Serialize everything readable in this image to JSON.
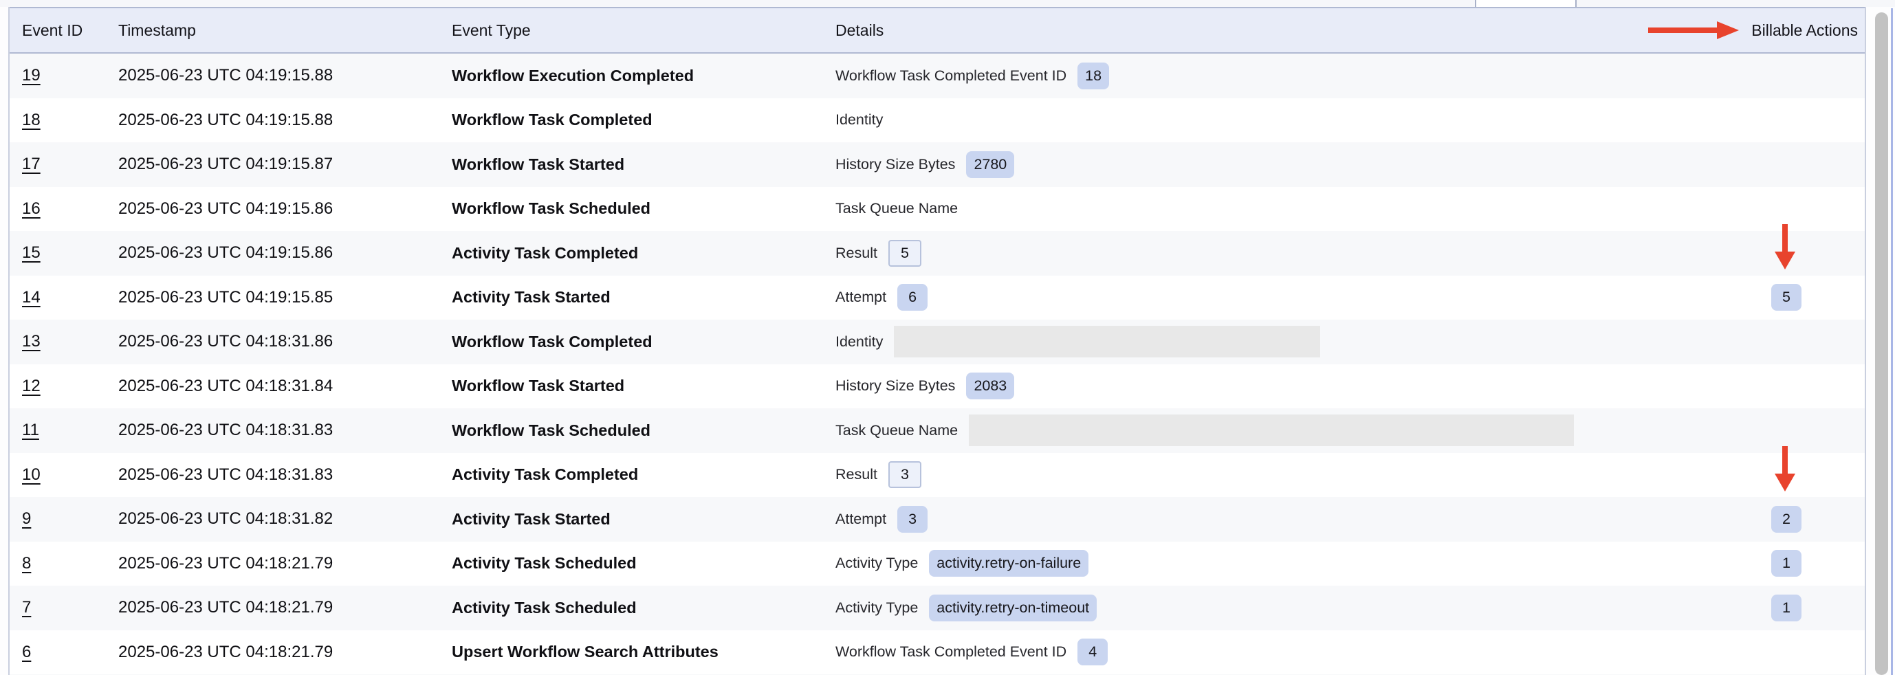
{
  "table": {
    "columns": [
      {
        "id": "event_id",
        "label": "Event ID"
      },
      {
        "id": "timestamp",
        "label": "Timestamp"
      },
      {
        "id": "event_type",
        "label": "Event Type"
      },
      {
        "id": "details",
        "label": "Details"
      },
      {
        "id": "billable_actions",
        "label": "Billable Actions"
      }
    ],
    "rows": [
      {
        "id": "19",
        "timestamp": "2025-06-23 UTC 04:19:15.88",
        "event_type": "Workflow Execution Completed",
        "detail_label": "Workflow Task Completed Event ID",
        "detail_value": "18",
        "detail_style": "badge",
        "redacted_width": 0,
        "billable": "",
        "arrow_above": false
      },
      {
        "id": "18",
        "timestamp": "2025-06-23 UTC 04:19:15.88",
        "event_type": "Workflow Task Completed",
        "detail_label": "Identity",
        "detail_value": "",
        "detail_style": "label-only",
        "redacted_width": 0,
        "billable": "",
        "arrow_above": false
      },
      {
        "id": "17",
        "timestamp": "2025-06-23 UTC 04:19:15.87",
        "event_type": "Workflow Task Started",
        "detail_label": "History Size Bytes",
        "detail_value": "2780",
        "detail_style": "badge",
        "redacted_width": 0,
        "billable": "",
        "arrow_above": false
      },
      {
        "id": "16",
        "timestamp": "2025-06-23 UTC 04:19:15.86",
        "event_type": "Workflow Task Scheduled",
        "detail_label": "Task Queue Name",
        "detail_value": "",
        "detail_style": "label-only",
        "redacted_width": 0,
        "billable": "",
        "arrow_above": false
      },
      {
        "id": "15",
        "timestamp": "2025-06-23 UTC 04:19:15.86",
        "event_type": "Activity Task Completed",
        "detail_label": "Result",
        "detail_value": "5",
        "detail_style": "badge-outline",
        "redacted_width": 0,
        "billable": "",
        "arrow_above": true
      },
      {
        "id": "14",
        "timestamp": "2025-06-23 UTC 04:19:15.85",
        "event_type": "Activity Task Started",
        "detail_label": "Attempt",
        "detail_value": "6",
        "detail_style": "badge",
        "redacted_width": 0,
        "billable": "5",
        "arrow_above": false
      },
      {
        "id": "13",
        "timestamp": "2025-06-23 UTC 04:18:31.86",
        "event_type": "Workflow Task Completed",
        "detail_label": "Identity",
        "detail_value": "",
        "detail_style": "redacted",
        "redacted_width": 620,
        "billable": "",
        "arrow_above": false
      },
      {
        "id": "12",
        "timestamp": "2025-06-23 UTC 04:18:31.84",
        "event_type": "Workflow Task Started",
        "detail_label": "History Size Bytes",
        "detail_value": "2083",
        "detail_style": "badge",
        "redacted_width": 0,
        "billable": "",
        "arrow_above": false
      },
      {
        "id": "11",
        "timestamp": "2025-06-23 UTC 04:18:31.83",
        "event_type": "Workflow Task Scheduled",
        "detail_label": "Task Queue Name",
        "detail_value": "",
        "detail_style": "redacted",
        "redacted_width": 880,
        "billable": "",
        "arrow_above": false
      },
      {
        "id": "10",
        "timestamp": "2025-06-23 UTC 04:18:31.83",
        "event_type": "Activity Task Completed",
        "detail_label": "Result",
        "detail_value": "3",
        "detail_style": "badge-outline",
        "redacted_width": 0,
        "billable": "",
        "arrow_above": true
      },
      {
        "id": "9",
        "timestamp": "2025-06-23 UTC 04:18:31.82",
        "event_type": "Activity Task Started",
        "detail_label": "Attempt",
        "detail_value": "3",
        "detail_style": "badge",
        "redacted_width": 0,
        "billable": "2",
        "arrow_above": false
      },
      {
        "id": "8",
        "timestamp": "2025-06-23 UTC 04:18:21.79",
        "event_type": "Activity Task Scheduled",
        "detail_label": "Activity Type",
        "detail_value": "activity.retry-on-failure",
        "detail_style": "badge",
        "redacted_width": 0,
        "billable": "1",
        "arrow_above": false
      },
      {
        "id": "7",
        "timestamp": "2025-06-23 UTC 04:18:21.79",
        "event_type": "Activity Task Scheduled",
        "detail_label": "Activity Type",
        "detail_value": "activity.retry-on-timeout",
        "detail_style": "badge",
        "redacted_width": 0,
        "billable": "1",
        "arrow_above": false
      },
      {
        "id": "6",
        "timestamp": "2025-06-23 UTC 04:18:21.79",
        "event_type": "Upsert Workflow Search Attributes",
        "detail_label": "Workflow Task Completed Event ID",
        "detail_value": "4",
        "detail_style": "badge",
        "redacted_width": 0,
        "billable": "",
        "arrow_above": false
      }
    ]
  },
  "annotations": {
    "header_arrow": "red-arrow-pointing-right-at-billable-actions-header",
    "row_arrows": [
      "red-arrow-down-above-billable-count-5",
      "red-arrow-down-above-billable-count-2"
    ],
    "arrow_color": "#E8432D"
  },
  "colors": {
    "header_bg": "#E8ECF8",
    "header_border": "#B0B9D2",
    "row_alt_bg": "#F7F8FA",
    "row_bg": "#FFFFFF",
    "badge_bg": "#C9D5F0",
    "badge_outline_bg": "#EDF1FA",
    "badge_outline_border": "#B7C2DC",
    "redacted_bg": "#E8E8E8",
    "arrow_red": "#E8432D",
    "scrollbar_thumb": "#C2C2C2",
    "right_edge_line": "#A8B6E6"
  }
}
